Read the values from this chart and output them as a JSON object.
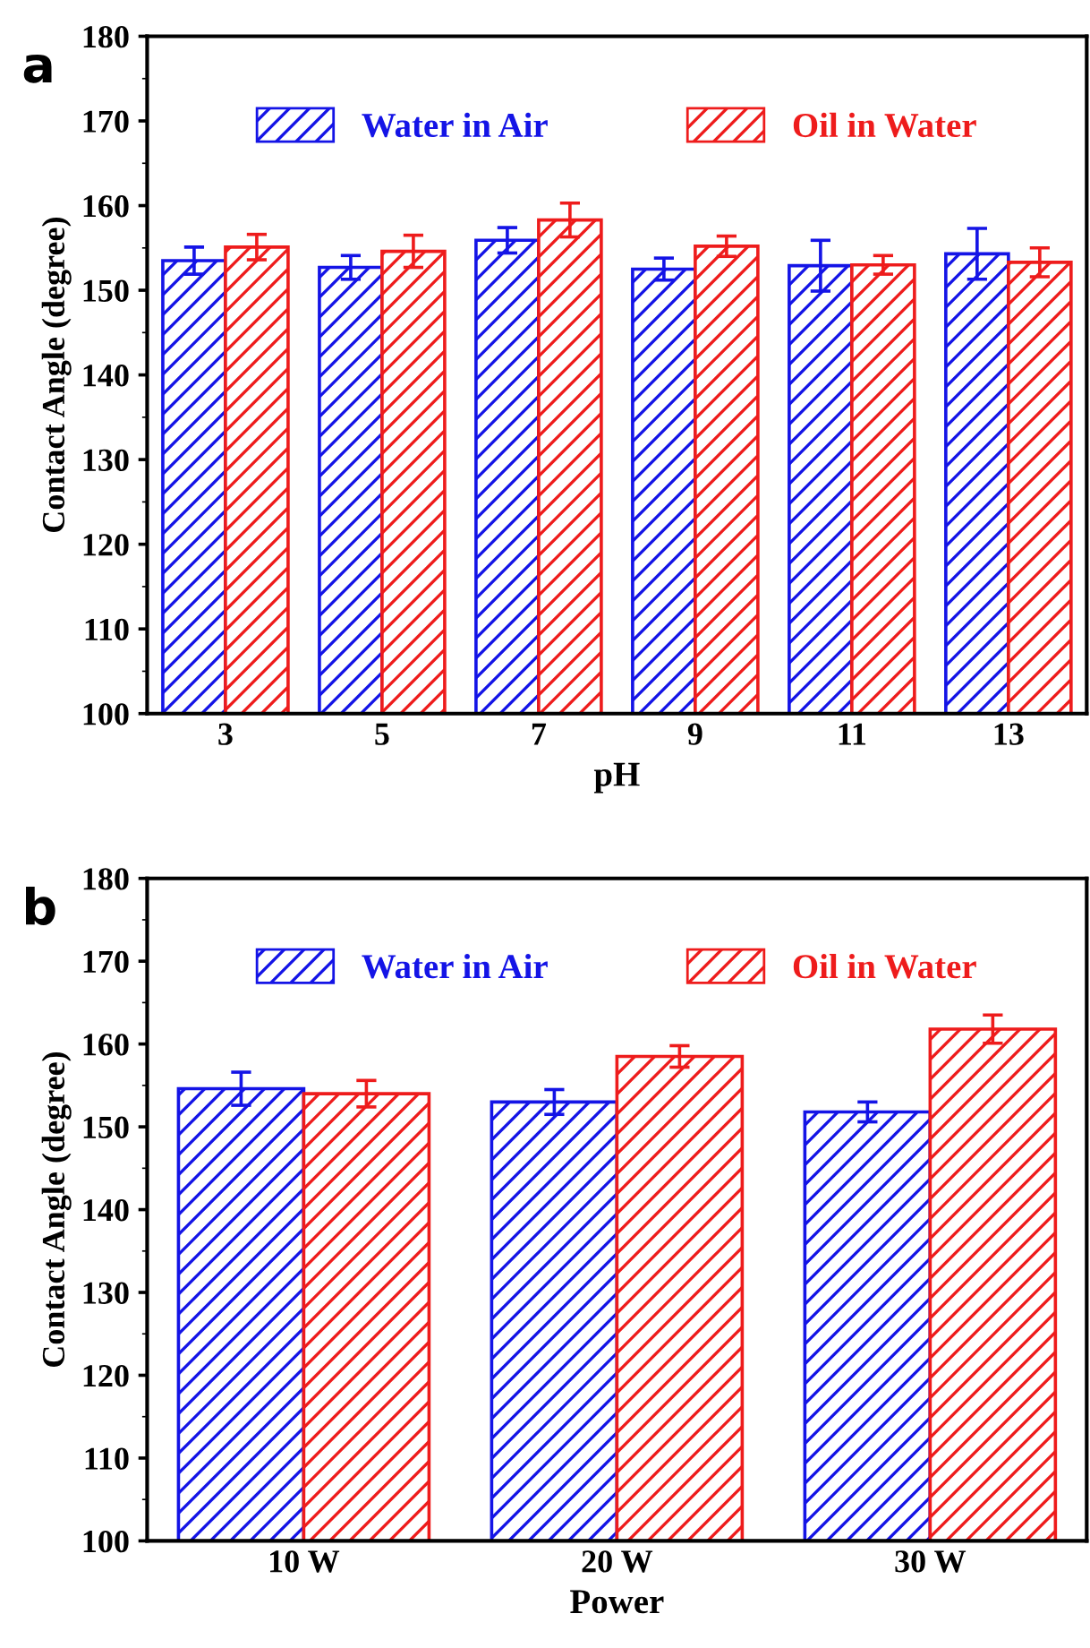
{
  "chart_data": [
    {
      "type": "bar",
      "annotations": [
        "a"
      ],
      "xlabel": "pH",
      "ylabel": "Contact Angle (degree)",
      "categories": [
        "3",
        "5",
        "7",
        "9",
        "11",
        "13"
      ],
      "series": [
        {
          "name": "Water in Air",
          "color": "#1414e6",
          "values": [
            153.5,
            152.7,
            155.9,
            152.5,
            152.9,
            154.3
          ],
          "errors": [
            1.6,
            1.4,
            1.5,
            1.3,
            3.0,
            3.0
          ]
        },
        {
          "name": "Oil in Water",
          "color": "#ee1c1c",
          "values": [
            155.1,
            154.6,
            158.3,
            155.2,
            153.0,
            153.3
          ],
          "errors": [
            1.5,
            1.9,
            2.0,
            1.2,
            1.1,
            1.7
          ]
        }
      ],
      "ylim": [
        100,
        180
      ],
      "yticks": [
        100,
        110,
        120,
        130,
        140,
        150,
        160,
        170,
        180
      ],
      "legend": "top",
      "grid": false
    },
    {
      "type": "bar",
      "annotations": [
        "b"
      ],
      "xlabel": "Power",
      "ylabel": "Contact Angle (degree)",
      "categories": [
        "10 W",
        "20 W",
        "30 W"
      ],
      "series": [
        {
          "name": "Water in Air",
          "color": "#1414e6",
          "values": [
            154.6,
            153.0,
            151.8
          ],
          "errors": [
            2.0,
            1.5,
            1.2
          ]
        },
        {
          "name": "Oil in Water",
          "color": "#ee1c1c",
          "values": [
            154.0,
            158.5,
            161.8
          ],
          "errors": [
            1.6,
            1.3,
            1.7
          ]
        }
      ],
      "ylim": [
        100,
        180
      ],
      "yticks": [
        100,
        110,
        120,
        130,
        140,
        150,
        160,
        170,
        180
      ],
      "legend": "top",
      "grid": false
    }
  ]
}
